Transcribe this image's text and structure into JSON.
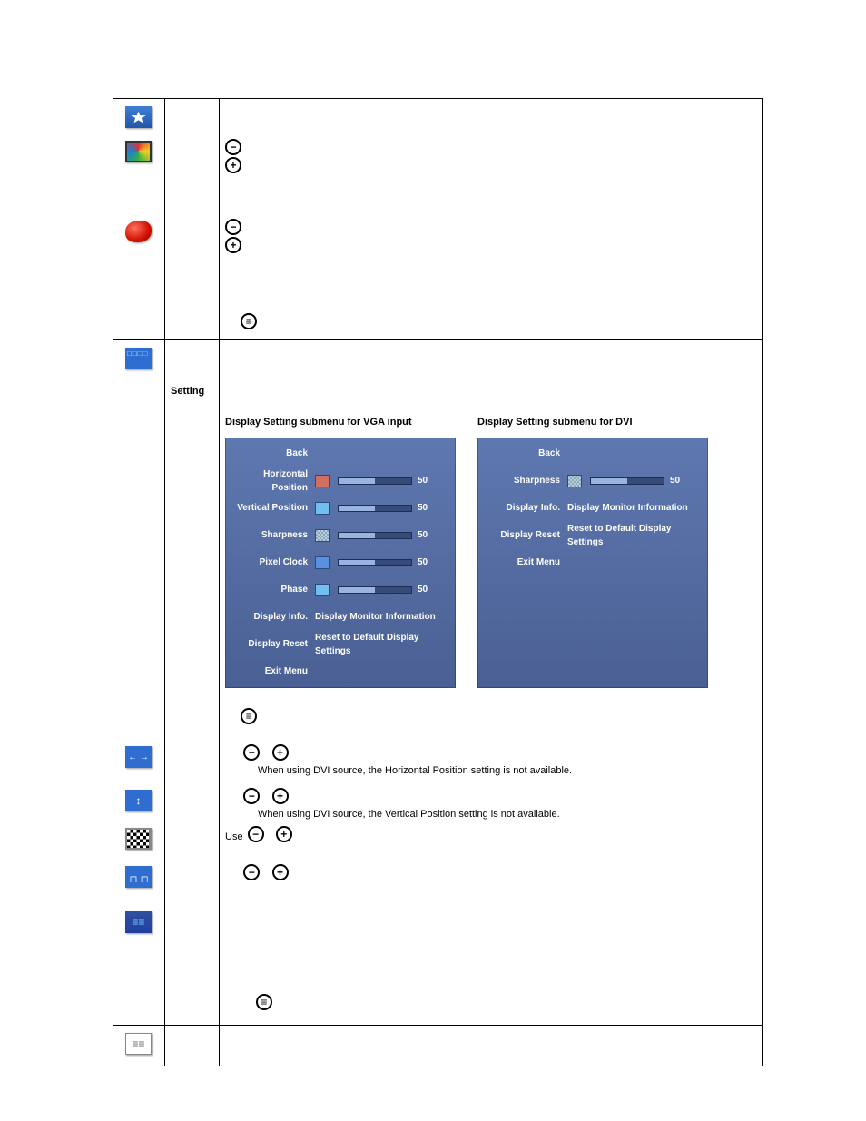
{
  "labels": {
    "setting": "Setting",
    "use": "Use"
  },
  "notes": {
    "hpos_dvi": "When using DVI source, the Horizontal Position setting is not available.",
    "vpos_dvi": "When using DVI source, the Vertical Position setting is not available."
  },
  "submenu_titles": {
    "vga": "Display Setting  submenu for VGA input",
    "dvi": "Display Setting  submenu for DVI"
  },
  "panel_colors": {
    "bg_top": "#5e78b0",
    "bg_bottom": "#4a6094",
    "track": "#364b7a",
    "fill": "#9ab4e2",
    "text": "#ffffff"
  },
  "vga_panel": {
    "rows": [
      {
        "label": "Back",
        "type": "header"
      },
      {
        "label": "Horizontal Position",
        "type": "slider",
        "icon": "red",
        "value": 50
      },
      {
        "label": "Vertical Position",
        "type": "slider",
        "icon": "blue",
        "value": 50
      },
      {
        "label": "Sharpness",
        "type": "slider",
        "icon": "grid",
        "value": 50
      },
      {
        "label": "Pixel Clock",
        "type": "slider",
        "icon": "wave",
        "value": 50
      },
      {
        "label": "Phase",
        "type": "slider",
        "icon": "phase",
        "value": 50
      },
      {
        "label": "Display Info.",
        "type": "text",
        "text": "Display Monitor Information"
      },
      {
        "label": "Display Reset",
        "type": "text",
        "text": "Reset to Default Display Settings"
      },
      {
        "label": "Exit Menu",
        "type": "blank"
      }
    ]
  },
  "dvi_panel": {
    "rows": [
      {
        "label": "Back",
        "type": "header"
      },
      {
        "label": "Sharpness",
        "type": "slider",
        "icon": "grid",
        "value": 50
      },
      {
        "label": "Display Info.",
        "type": "text",
        "text": "Display Monitor Information"
      },
      {
        "label": "Display Reset",
        "type": "text",
        "text": "Reset to Default Display Settings"
      },
      {
        "label": "Exit Menu",
        "type": "blank"
      }
    ]
  }
}
